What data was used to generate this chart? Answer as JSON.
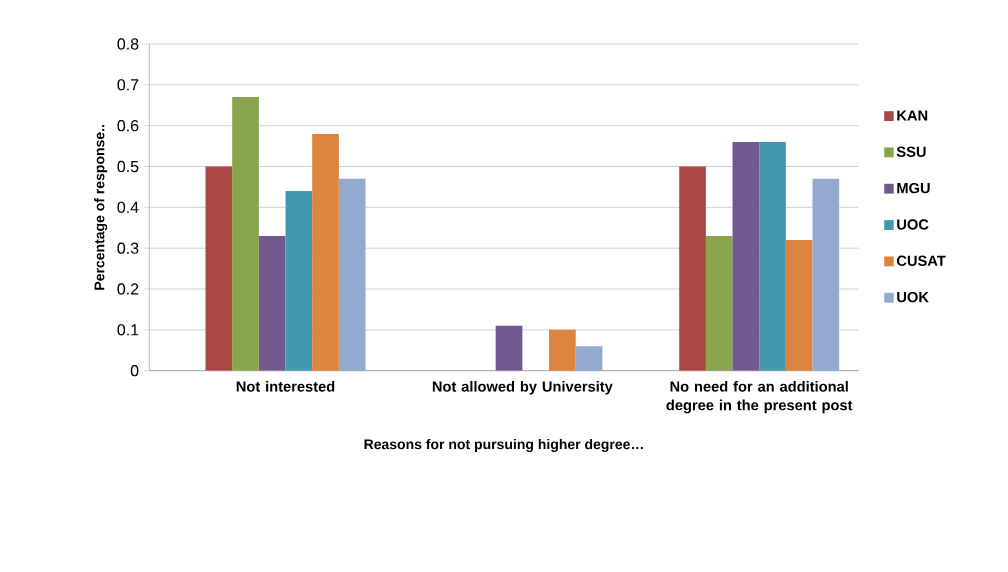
{
  "chart_data": {
    "type": "bar",
    "xlabel": "Reasons for not pursuing higher degree…",
    "ylabel": "Percentage of response..",
    "categories": [
      "Not interested",
      "Not allowed by University",
      "No need for an additional degree in the present post"
    ],
    "series": [
      {
        "name": "KAN",
        "color": "#aa4643",
        "values": [
          0.5,
          0,
          0.5
        ]
      },
      {
        "name": "SSU",
        "color": "#89a54e",
        "values": [
          0.67,
          0,
          0.33
        ]
      },
      {
        "name": "MGU",
        "color": "#71588f",
        "values": [
          0.33,
          0.11,
          0.56
        ]
      },
      {
        "name": "UOC",
        "color": "#4198af",
        "values": [
          0.44,
          0,
          0.56
        ]
      },
      {
        "name": "CUSAT",
        "color": "#db843d",
        "values": [
          0.58,
          0.1,
          0.32
        ]
      },
      {
        "name": "UOK",
        "color": "#93a9cf",
        "values": [
          0.47,
          0.06,
          0.47
        ]
      }
    ],
    "ylim": [
      0,
      0.8
    ],
    "yticks": [
      0,
      0.1,
      0.2,
      0.3,
      0.4,
      0.5,
      0.6,
      0.7,
      0.8
    ],
    "grid": "y",
    "legend": "right"
  }
}
